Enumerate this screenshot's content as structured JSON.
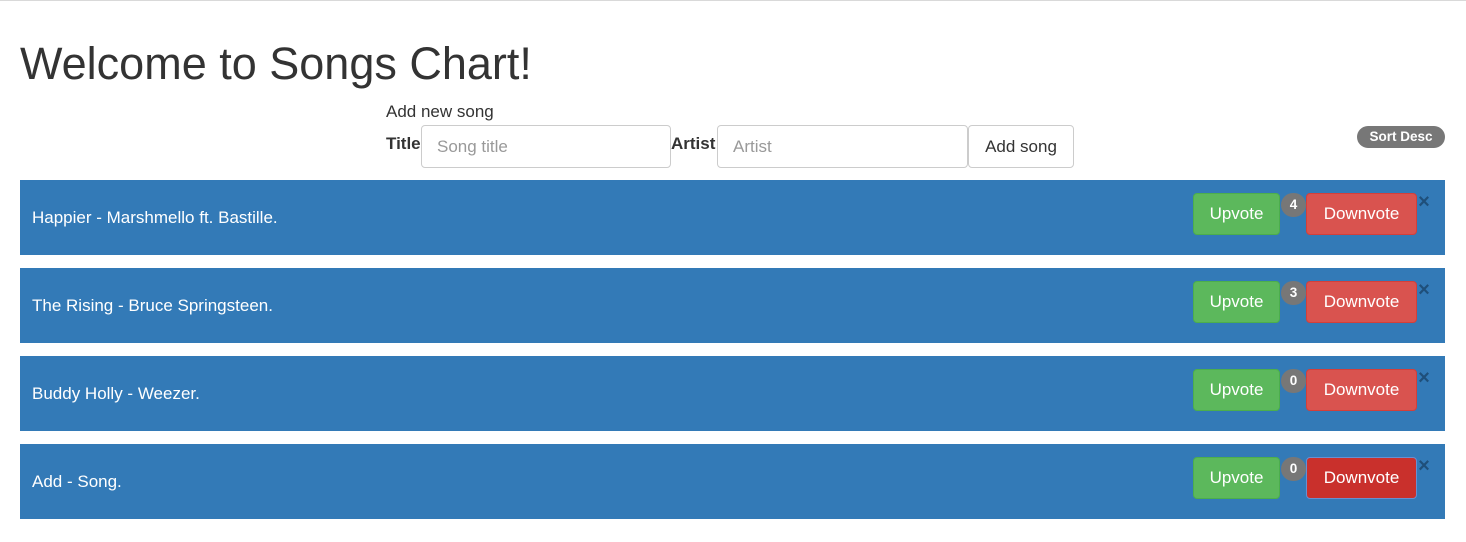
{
  "header": {
    "title": "Welcome to Songs Chart!"
  },
  "add_form": {
    "heading": "Add new song",
    "title_label": "Title",
    "title_placeholder": "Song title",
    "artist_label": "Artist",
    "artist_placeholder": "Artist",
    "submit_label": "Add song"
  },
  "sort": {
    "label": "Sort Desc"
  },
  "songs": [
    {
      "label": "Happier - Marshmello ft. Bastille.",
      "votes": "4",
      "upvote_label": "Upvote",
      "downvote_label": "Downvote",
      "remove_glyph": "×"
    },
    {
      "label": "The Rising - Bruce Springsteen.",
      "votes": "3",
      "upvote_label": "Upvote",
      "downvote_label": "Downvote",
      "remove_glyph": "×"
    },
    {
      "label": "Buddy Holly - Weezer.",
      "votes": "0",
      "upvote_label": "Upvote",
      "downvote_label": "Downvote",
      "remove_glyph": "×"
    },
    {
      "label": "Add - Song.",
      "votes": "0",
      "upvote_label": "Upvote",
      "downvote_label": "Downvote",
      "remove_glyph": "×"
    }
  ],
  "colors": {
    "row_background": "#337ab7",
    "upvote": "#5cb85c",
    "downvote": "#d9534f",
    "badge": "#777777"
  }
}
